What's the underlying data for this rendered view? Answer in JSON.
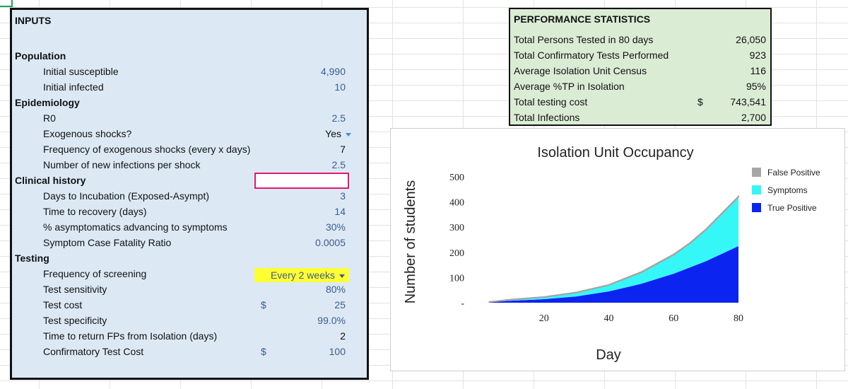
{
  "inputs": {
    "title": "INPUTS",
    "population": {
      "header": "Population",
      "initial_susceptible": {
        "label": "Initial susceptible",
        "value": "4,990"
      },
      "initial_infected": {
        "label": "Initial infected",
        "value": "10"
      }
    },
    "epidemiology": {
      "header": "Epidemiology",
      "r0": {
        "label": "R0",
        "value": "2.5"
      },
      "exogenous": {
        "label": "Exogenous shocks?",
        "value": "Yes"
      },
      "frequency": {
        "label": "Frequency of exogenous shocks (every x days)",
        "value": "7"
      },
      "new_infections": {
        "label": "Number of new infections per shock",
        "value": "2.5"
      }
    },
    "clinical": {
      "header": "Clinical history",
      "incubation": {
        "label": "Days to Incubation (Exposed-Asympt)",
        "value": "3"
      },
      "recovery": {
        "label": "Time to recovery (days)",
        "value": "14"
      },
      "asymptomatic": {
        "label": "% asymptomatics advancing to symptoms",
        "value": "30%"
      },
      "fatality": {
        "label": "Symptom Case Fatality Ratio",
        "value": "0.0005"
      }
    },
    "testing": {
      "header": "Testing",
      "frequency": {
        "label": "Frequency of screening",
        "value": "Every 2 weeks"
      },
      "sensitivity": {
        "label": "Test sensitivity",
        "value": "80%"
      },
      "cost": {
        "label": "Test cost",
        "currency": "$",
        "value": "25"
      },
      "specificity": {
        "label": "Test specificity",
        "value": "99.0%"
      },
      "return_fps": {
        "label": "Time to return FPs from Isolation (days)",
        "value": "2"
      },
      "confirmatory_cost": {
        "label": "Confirmatory Test Cost",
        "currency": "$",
        "value": "100"
      }
    }
  },
  "performance": {
    "title": "PERFORMANCE STATISTICS",
    "rows": [
      {
        "label": "Total Persons Tested in 80 days",
        "value": "26,050"
      },
      {
        "label": "Total Confirmatory Tests Performed",
        "value": "923"
      },
      {
        "label": "Average Isolation Unit Census",
        "value": "116"
      },
      {
        "label": "Average %TP in Isolation",
        "value": "95%"
      },
      {
        "label": "Total testing cost",
        "currency": "$",
        "value": "743,541"
      },
      {
        "label": "Total Infections",
        "value": "2,700"
      }
    ]
  },
  "chart_data": {
    "type": "area",
    "title": "Isolation Unit Occupancy",
    "xlabel": "Day",
    "ylabel": "Number of students",
    "xlim": [
      0,
      80
    ],
    "ylim": [
      0,
      500
    ],
    "x_ticks": [
      "20",
      "40",
      "60",
      "80"
    ],
    "y_ticks": [
      "-",
      "100",
      "200",
      "300",
      "400",
      "500"
    ],
    "x": [
      3,
      10,
      20,
      30,
      40,
      50,
      60,
      65,
      70,
      75,
      80
    ],
    "series": [
      {
        "name": "True Positive",
        "color": "#0b24f0",
        "values": [
          3,
          8,
          14,
          25,
          45,
          75,
          115,
          140,
          165,
          195,
          225
        ]
      },
      {
        "name": "Symptoms",
        "color": "#36f7f7",
        "values": [
          0,
          4,
          8,
          15,
          25,
          45,
          75,
          95,
          125,
          160,
          195
        ]
      },
      {
        "name": "False Positive",
        "color": "#a6a6a6",
        "values": [
          0,
          1,
          1,
          1,
          1,
          2,
          2,
          2,
          2,
          2,
          2
        ]
      }
    ],
    "legend": [
      "False Positive",
      "Symptoms",
      "True Positive"
    ],
    "legend_position": "right"
  }
}
